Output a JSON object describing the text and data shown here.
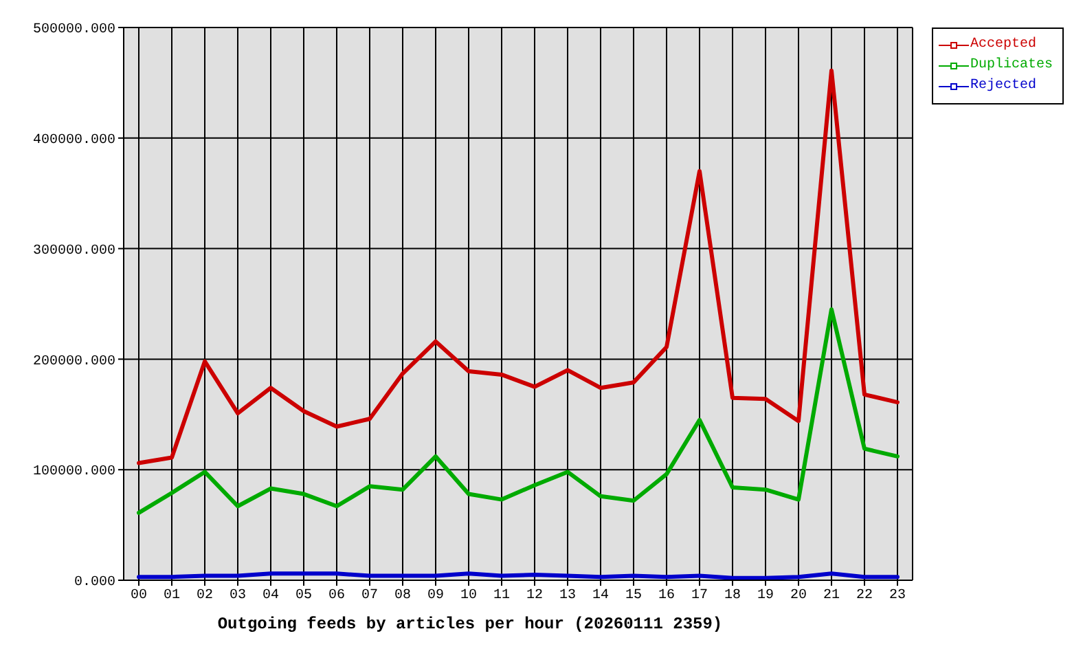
{
  "chart_data": {
    "type": "line",
    "xlabel": "Outgoing feeds by articles per hour (20260111 2359)",
    "categories": [
      "00",
      "01",
      "02",
      "03",
      "04",
      "05",
      "06",
      "07",
      "08",
      "09",
      "10",
      "11",
      "12",
      "13",
      "14",
      "15",
      "16",
      "17",
      "18",
      "19",
      "20",
      "21",
      "22",
      "23"
    ],
    "series": [
      {
        "name": "Accepted",
        "color": "#cc0000",
        "values": [
          106000,
          111000,
          198000,
          151000,
          174000,
          153000,
          139000,
          146000,
          187000,
          216000,
          189000,
          186000,
          175000,
          190000,
          174000,
          179000,
          211000,
          370000,
          165000,
          164000,
          144000,
          461000,
          168000,
          161000
        ]
      },
      {
        "name": "Duplicates",
        "color": "#00aa00",
        "values": [
          61000,
          79000,
          98000,
          67000,
          83000,
          78000,
          67000,
          85000,
          82000,
          112000,
          78000,
          73000,
          86000,
          98000,
          76000,
          72000,
          96000,
          145000,
          84000,
          82000,
          73000,
          245000,
          119000,
          112000
        ]
      },
      {
        "name": "Rejected",
        "color": "#0000cc",
        "values": [
          3000,
          3000,
          4000,
          4000,
          6000,
          6000,
          6000,
          4000,
          4000,
          4000,
          6000,
          4000,
          5000,
          4000,
          3000,
          4000,
          3000,
          4000,
          2000,
          2000,
          3000,
          6000,
          3000,
          3000
        ]
      }
    ],
    "ylim": [
      0,
      500000
    ],
    "yticks": [
      {
        "value": 0,
        "label": "0.000"
      },
      {
        "value": 100000,
        "label": "100000.000"
      },
      {
        "value": 200000,
        "label": "200000.000"
      },
      {
        "value": 300000,
        "label": "300000.000"
      },
      {
        "value": 400000,
        "label": "400000.000"
      },
      {
        "value": 500000,
        "label": "500000.000"
      }
    ],
    "grid": true,
    "legend": "top right",
    "marker": "none",
    "line_style": "solid"
  }
}
